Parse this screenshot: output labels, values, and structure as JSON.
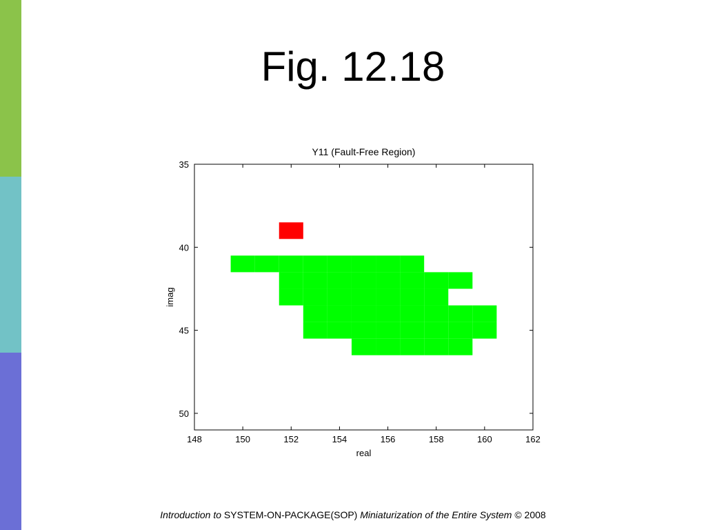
{
  "slide": {
    "title": "Fig. 12.18",
    "sidebar_colors": [
      "#8bc34a",
      "#72c2c6",
      "#6b6fd6"
    ]
  },
  "chart_data": {
    "type": "heatmap",
    "title": "Y11 (Fault-Free Region)",
    "xlabel": "real",
    "ylabel": "imag",
    "xlim": [
      148,
      162
    ],
    "ylim": [
      35,
      51
    ],
    "y_reversed": true,
    "x_ticks": [
      148,
      150,
      152,
      154,
      156,
      158,
      160,
      162
    ],
    "y_ticks": [
      35,
      40,
      45,
      50
    ],
    "cell_size": 1,
    "series": [
      {
        "color": "#ff0000",
        "cells": [
          [
            152,
            39
          ]
        ]
      },
      {
        "color": "#00ff00",
        "cells": [
          [
            150,
            41
          ],
          [
            151,
            41
          ],
          [
            152,
            41
          ],
          [
            153,
            41
          ],
          [
            154,
            41
          ],
          [
            155,
            41
          ],
          [
            156,
            41
          ],
          [
            157,
            41
          ],
          [
            152,
            42
          ],
          [
            153,
            42
          ],
          [
            154,
            42
          ],
          [
            155,
            42
          ],
          [
            156,
            42
          ],
          [
            157,
            42
          ],
          [
            158,
            42
          ],
          [
            159,
            42
          ],
          [
            152,
            43
          ],
          [
            153,
            43
          ],
          [
            154,
            43
          ],
          [
            155,
            43
          ],
          [
            156,
            43
          ],
          [
            157,
            43
          ],
          [
            158,
            43
          ],
          [
            153,
            44
          ],
          [
            154,
            44
          ],
          [
            155,
            44
          ],
          [
            156,
            44
          ],
          [
            157,
            44
          ],
          [
            158,
            44
          ],
          [
            159,
            44
          ],
          [
            160,
            44
          ],
          [
            153,
            45
          ],
          [
            154,
            45
          ],
          [
            155,
            45
          ],
          [
            156,
            45
          ],
          [
            157,
            45
          ],
          [
            158,
            45
          ],
          [
            159,
            45
          ],
          [
            160,
            45
          ],
          [
            155,
            46
          ],
          [
            156,
            46
          ],
          [
            157,
            46
          ],
          [
            158,
            46
          ],
          [
            159,
            46
          ]
        ]
      }
    ],
    "grid": false
  },
  "footer": {
    "intro": "Introduction to",
    "book": "SYSTEM-ON-PACKAGE(SOP)",
    "subtitle": "Miniaturization of the Entire System",
    "copyright": "© 2008"
  }
}
